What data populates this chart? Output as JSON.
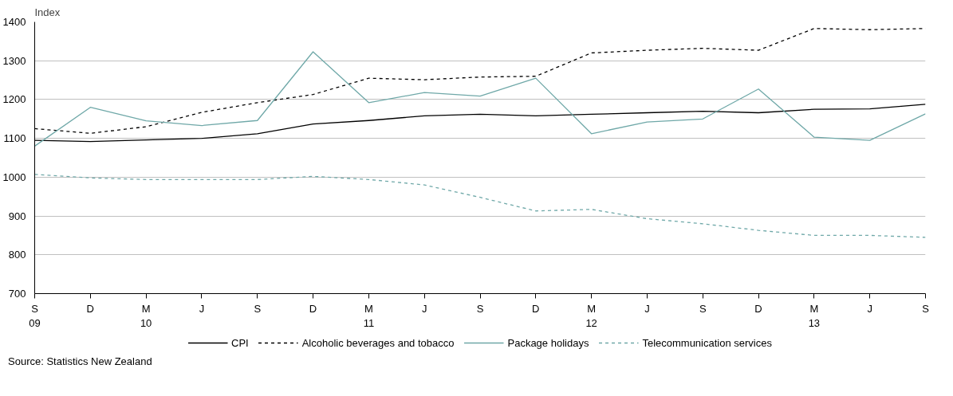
{
  "chart_data": {
    "type": "line",
    "ylabel": "Index",
    "categories": [
      "S\n09",
      "D",
      "M\n10",
      "J",
      "S",
      "D",
      "M\n11",
      "J",
      "S",
      "D",
      "M\n12",
      "J",
      "S",
      "D",
      "M\n13",
      "J",
      "S"
    ],
    "series": [
      {
        "name": "CPI",
        "color": "#000000",
        "line_style": "solid",
        "values": [
          1095,
          1092,
          1096,
          1100,
          1112,
          1137,
          1146,
          1158,
          1162,
          1158,
          1162,
          1166,
          1170,
          1166,
          1175,
          1176,
          1188
        ]
      },
      {
        "name": "Alcoholic beverages and tobacco",
        "color": "#000000",
        "line_style": "dashed",
        "values": [
          1125,
          1113,
          1130,
          1167,
          1192,
          1213,
          1255,
          1251,
          1258,
          1260,
          1320,
          1327,
          1332,
          1327,
          1383,
          1380,
          1383
        ]
      },
      {
        "name": "Package holidays",
        "color": "#6fa8a8",
        "line_style": "solid",
        "values": [
          1080,
          1180,
          1145,
          1133,
          1146,
          1323,
          1192,
          1218,
          1209,
          1255,
          1112,
          1142,
          1150,
          1227,
          1103,
          1095,
          1163
        ]
      },
      {
        "name": "Telecommunication services",
        "color": "#6fa8a8",
        "line_style": "dashed",
        "values": [
          1007,
          998,
          994,
          994,
          994,
          1002,
          994,
          980,
          948,
          913,
          917,
          893,
          880,
          863,
          850,
          850,
          845
        ]
      }
    ],
    "ylim": [
      700,
      1400
    ],
    "yticks": [
      700,
      800,
      900,
      1000,
      1100,
      1200,
      1300,
      1400
    ],
    "grid": "y",
    "legend": "bottom",
    "annotations": [
      "Source: Statistics New Zealand"
    ]
  }
}
